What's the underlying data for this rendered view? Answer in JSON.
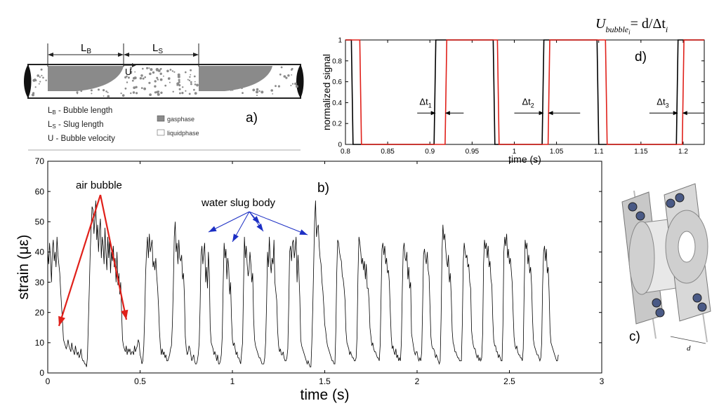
{
  "panels": {
    "a": {
      "letter": "a)",
      "lb_symbol": "L",
      "lb_sub": "B",
      "ls_symbol": "L",
      "ls_sub": "S",
      "u_symbol": "U",
      "legend": [
        {
          "sym": "L",
          "sub": "B",
          "text": " - Bubble length"
        },
        {
          "sym": "L",
          "sub": "S",
          "text": " - Slug length"
        },
        {
          "sym": "U",
          "sub": "",
          "text": "  - Bubble velocity"
        }
      ],
      "phases": {
        "gas": "gasphase",
        "liquid": "liquidphase"
      },
      "colors": {
        "gas": "#8a8a8a",
        "pipe_outline": "#222222"
      }
    },
    "b": {
      "letter": "b)",
      "annotations": {
        "air_bubble": "air bubble",
        "water_slug": "water slug body"
      },
      "colors": {
        "signal": "#000000",
        "air_arrow": "#e0201a",
        "slug_arrow": "#1c2fc4"
      }
    },
    "c": {
      "letter": "c)",
      "d_label": "d",
      "colors": {
        "body": "#d8d8d8",
        "bolt": "#4a5a86"
      }
    },
    "d": {
      "letter": "d)",
      "formula": {
        "U": "U",
        "sub": "bubble",
        "subsub": "i",
        "rhs": "= d/Δt",
        "rhs_sub": "i"
      },
      "dt_labels": [
        {
          "base": "Δt",
          "sub": "1"
        },
        {
          "base": "Δt",
          "sub": "2"
        },
        {
          "base": "Δt",
          "sub": "3"
        }
      ],
      "colors": {
        "sensor_1": "#000000",
        "sensor_2": "#e0201a"
      }
    }
  },
  "chart_data": [
    {
      "panel": "b",
      "type": "line",
      "xlabel": "time (s)",
      "ylabel": "strain (με)",
      "xlim": [
        0,
        3
      ],
      "ylim": [
        0,
        70
      ],
      "xticks": [
        0,
        0.5,
        1,
        1.5,
        2,
        2.5,
        3
      ],
      "xtick_labels": [
        "0",
        "0.5",
        "1",
        "1.5",
        "2",
        "2.5",
        "3"
      ],
      "yticks": [
        0,
        10,
        20,
        30,
        40,
        50,
        60,
        70
      ],
      "ytick_labels": [
        "0",
        "10",
        "20",
        "30",
        "40",
        "50",
        "60",
        "70"
      ],
      "grid": false,
      "series": [
        {
          "sample_step": 0.005,
          "values": [
            40,
            36,
            43,
            38,
            30,
            41,
            44,
            37,
            40,
            35,
            45,
            39,
            36,
            33,
            27,
            22,
            17,
            11,
            10,
            9,
            8,
            9,
            11,
            9,
            8,
            7,
            10,
            8,
            7,
            6,
            9,
            7,
            6,
            7,
            5,
            6,
            8,
            5,
            4,
            4,
            3,
            3,
            2,
            5,
            17,
            28,
            40,
            48,
            55,
            54,
            46,
            51,
            57,
            44,
            49,
            40,
            47,
            51,
            38,
            45,
            42,
            36,
            48,
            40,
            34,
            45,
            38,
            45,
            33,
            40,
            37,
            42,
            35,
            38,
            30,
            40,
            29,
            33,
            26,
            30,
            20,
            11,
            9,
            8,
            7,
            9,
            6,
            8,
            7,
            8,
            6,
            7,
            7,
            6,
            9,
            7,
            8,
            9,
            11,
            10,
            6,
            5,
            3,
            4,
            9,
            19,
            33,
            40,
            45,
            38,
            46,
            40,
            42,
            44,
            35,
            37,
            34,
            38,
            32,
            28,
            22,
            14,
            9,
            6,
            8,
            6,
            7,
            5,
            6,
            4,
            4,
            5,
            6,
            8,
            9,
            16,
            28,
            45,
            50,
            40,
            43,
            36,
            44,
            38,
            37,
            39,
            31,
            33,
            26,
            12,
            8,
            6,
            7,
            9,
            8,
            6,
            4,
            5,
            6,
            4,
            3,
            3,
            4,
            6,
            10,
            22,
            39,
            42,
            36,
            40,
            43,
            30,
            35,
            28,
            40,
            33,
            15,
            10,
            9,
            8,
            6,
            7,
            6,
            4,
            6,
            3,
            3,
            4,
            6,
            12,
            30,
            43,
            38,
            41,
            31,
            38,
            35,
            26,
            30,
            18,
            11,
            9,
            10,
            8,
            6,
            7,
            5,
            5,
            4,
            3,
            7,
            10,
            28,
            45,
            38,
            42,
            36,
            32,
            34,
            40,
            36,
            30,
            33,
            18,
            11,
            9,
            8,
            7,
            6,
            5,
            5,
            4,
            3,
            3,
            3,
            5,
            10,
            23,
            40,
            35,
            45,
            37,
            33,
            38,
            36,
            44,
            30,
            27,
            24,
            14,
            9,
            7,
            8,
            6,
            6,
            7,
            5,
            4,
            4,
            5,
            8,
            22,
            40,
            42,
            37,
            43,
            44,
            38,
            41,
            45,
            30,
            39,
            33,
            25,
            11,
            9,
            8,
            7,
            6,
            5,
            4,
            3,
            4,
            3,
            2,
            2,
            10,
            21,
            35,
            50,
            57,
            45,
            48,
            49,
            42,
            38,
            36,
            30,
            27,
            22,
            16,
            14,
            11,
            9,
            8,
            7,
            6,
            5,
            4,
            4,
            3,
            3,
            14,
            33,
            44,
            43,
            40,
            38,
            37,
            32,
            31,
            28,
            24,
            14,
            10,
            9,
            8,
            6,
            7,
            6,
            5,
            5,
            4,
            4,
            5,
            12,
            32,
            45,
            43,
            40,
            36,
            38,
            34,
            37,
            31,
            36,
            28,
            28,
            24,
            15,
            12,
            9,
            10,
            8,
            7,
            7,
            6,
            5,
            5,
            4,
            9,
            25,
            41,
            43,
            39,
            42,
            36,
            38,
            33,
            34,
            30,
            20,
            12,
            8,
            9,
            7,
            6,
            8,
            5,
            6,
            4,
            5,
            4,
            10,
            28,
            41,
            43,
            38,
            37,
            40,
            31,
            35,
            28,
            30,
            13,
            11,
            9,
            7,
            6,
            7,
            7,
            5,
            4,
            5,
            4,
            7,
            22,
            39,
            41,
            38,
            36,
            40,
            34,
            32,
            22,
            12,
            9,
            8,
            8,
            7,
            5,
            6,
            5,
            4,
            3,
            4,
            18,
            40,
            49,
            44,
            46,
            41,
            37,
            35,
            39,
            30,
            33,
            25,
            14,
            10,
            9,
            7,
            7,
            6,
            5,
            5,
            4,
            4,
            4,
            16,
            37,
            43,
            40,
            38,
            39,
            35,
            36,
            30,
            28,
            14,
            11,
            9,
            8,
            8,
            6,
            5,
            6,
            4,
            5,
            4,
            5,
            13,
            36,
            44,
            41,
            43,
            38,
            42,
            35,
            37,
            31,
            29,
            18,
            11,
            9,
            9,
            7,
            7,
            5,
            6,
            5,
            4,
            4,
            16,
            40,
            45,
            42,
            46,
            38,
            41,
            36,
            38,
            34,
            30,
            20,
            12,
            9,
            8,
            9,
            7,
            6,
            6,
            5,
            5,
            4,
            8,
            27,
            44,
            41,
            43,
            36,
            39,
            33,
            35,
            29,
            18,
            11,
            9,
            8,
            7,
            6,
            6,
            5,
            4,
            5,
            10,
            29,
            40,
            42,
            37,
            41,
            33,
            35,
            27,
            14,
            10,
            9,
            8,
            7,
            6,
            5,
            4,
            4,
            6
          ]
        }
      ]
    },
    {
      "panel": "d",
      "type": "line",
      "xlabel": "time (s)",
      "ylabel": "normalized signal",
      "xlim": [
        0.8,
        1.225
      ],
      "ylim": [
        0,
        1
      ],
      "xticks": [
        0.8,
        0.85,
        0.9,
        0.95,
        1,
        1.05,
        1.1,
        1.15,
        1.2
      ],
      "xtick_labels": [
        "0.8",
        "0.85",
        "0.9",
        "0.95",
        "1",
        "1.05",
        "1.1",
        "1.15",
        "1.2"
      ],
      "yticks": [
        0,
        0.2,
        0.4,
        0.6,
        0.8,
        1
      ],
      "ytick_labels": [
        "0",
        "0.2",
        "0.4",
        "0.6",
        "0.8",
        "1"
      ],
      "grid": false,
      "series": [
        {
          "color": "black",
          "x": [
            0.8,
            0.807,
            0.809,
            0.905,
            0.907,
            0.975,
            0.977,
            1.033,
            1.035,
            1.098,
            1.1,
            1.192,
            1.194,
            1.225
          ],
          "y": [
            1,
            1,
            0,
            0,
            1,
            1,
            0,
            0,
            1,
            1,
            0,
            0,
            1,
            1
          ]
        },
        {
          "color": "red",
          "x": [
            0.8,
            0.817,
            0.819,
            0.918,
            0.92,
            0.98,
            0.982,
            1.04,
            1.042,
            1.108,
            1.11,
            1.199,
            1.201,
            1.225
          ],
          "y": [
            1,
            1,
            0,
            0,
            1,
            1,
            0,
            0,
            1,
            1,
            0,
            0,
            1,
            1
          ]
        }
      ]
    }
  ]
}
